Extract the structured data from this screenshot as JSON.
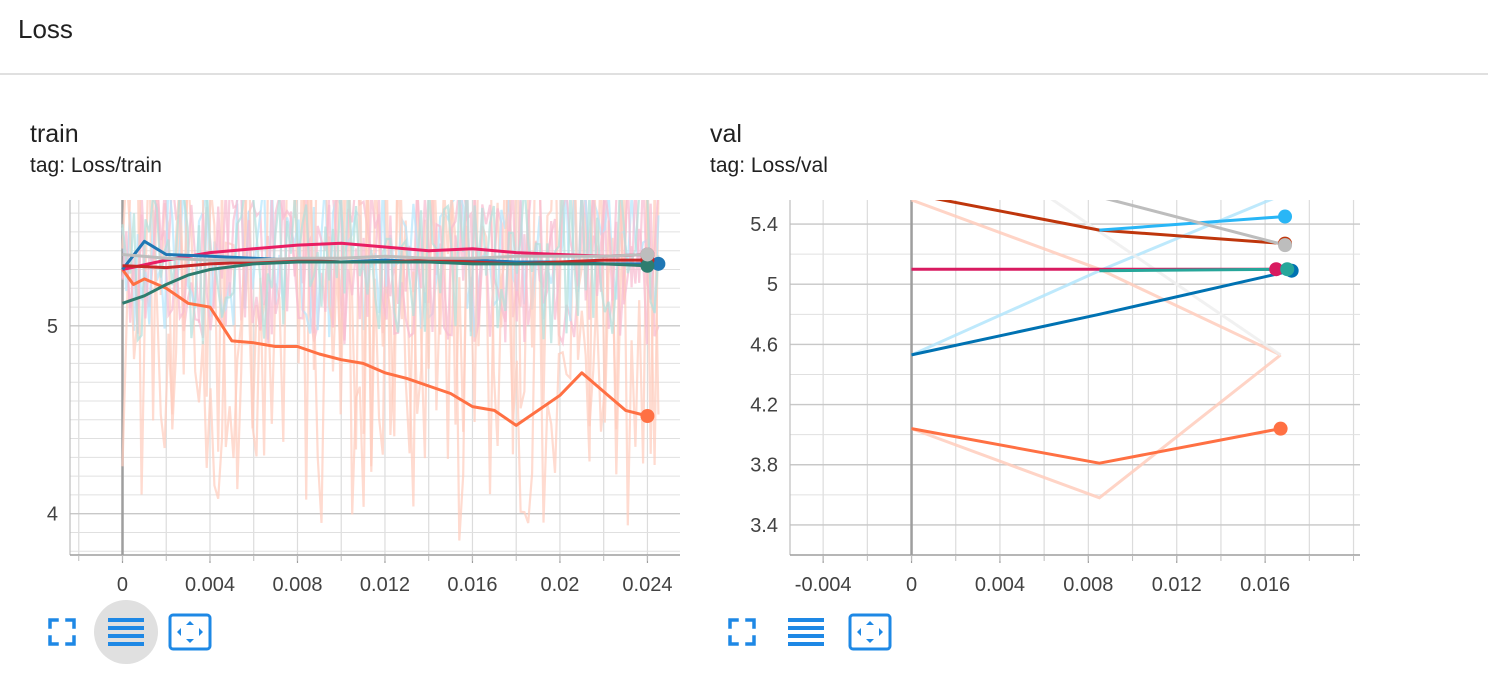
{
  "section": {
    "title": "Loss"
  },
  "cards": [
    {
      "title": "train",
      "tag": "tag: Loss/train"
    },
    {
      "title": "val",
      "tag": "tag: Loss/val"
    }
  ],
  "toolbar_icons": [
    "fullscreen-icon",
    "data-table-icon",
    "fit-domain-icon"
  ],
  "chart_data": [
    {
      "type": "line",
      "title": "train",
      "subtitle": "tag: Loss/train",
      "xlim": [
        -0.0024,
        0.0259
      ],
      "ylim": [
        3.78,
        5.67
      ],
      "xticks": [
        0,
        0.004,
        0.008,
        0.012,
        0.016,
        0.02,
        0.024
      ],
      "xtick_labels": [
        "0",
        "0.004",
        "0.008",
        "0.012",
        "0.016",
        "0.02",
        "0.024"
      ],
      "yticks": [
        4,
        5
      ],
      "ytick_labels": [
        "4",
        "5"
      ],
      "grid": true,
      "series": [
        {
          "color": "#ff7043",
          "x": [
            0,
            0.0005,
            0.001,
            0.002,
            0.003,
            0.004,
            0.005,
            0.006,
            0.007,
            0.008,
            0.009,
            0.01,
            0.011,
            0.012,
            0.013,
            0.014,
            0.015,
            0.016,
            0.017,
            0.018,
            0.019,
            0.02,
            0.021,
            0.022,
            0.023,
            0.024
          ],
          "y": [
            5.3,
            5.22,
            5.25,
            5.2,
            5.12,
            5.1,
            4.92,
            4.91,
            4.89,
            4.89,
            4.85,
            4.82,
            4.8,
            4.75,
            4.72,
            4.68,
            4.64,
            4.57,
            4.55,
            4.47,
            4.55,
            4.63,
            4.75,
            4.65,
            4.55,
            4.52
          ]
        },
        {
          "color": "#e91e63",
          "x": [
            0,
            0.002,
            0.004,
            0.006,
            0.008,
            0.01,
            0.012,
            0.014,
            0.016,
            0.018,
            0.02,
            0.022,
            0.024
          ],
          "y": [
            5.3,
            5.35,
            5.39,
            5.41,
            5.43,
            5.44,
            5.42,
            5.4,
            5.41,
            5.39,
            5.38,
            5.37,
            5.38
          ]
        },
        {
          "color": "#1f77b4",
          "x": [
            0,
            0.001,
            0.002,
            0.004,
            0.006,
            0.008,
            0.01,
            0.012,
            0.014,
            0.016,
            0.018,
            0.02,
            0.022,
            0.0245
          ],
          "y": [
            5.3,
            5.45,
            5.38,
            5.37,
            5.36,
            5.35,
            5.34,
            5.35,
            5.34,
            5.35,
            5.34,
            5.34,
            5.33,
            5.33
          ]
        },
        {
          "color": "#c62828",
          "x": [
            0,
            0.002,
            0.004,
            0.006,
            0.008,
            0.01,
            0.012,
            0.014,
            0.016,
            0.018,
            0.02,
            0.022,
            0.024
          ],
          "y": [
            5.32,
            5.31,
            5.33,
            5.34,
            5.35,
            5.34,
            5.34,
            5.35,
            5.34,
            5.33,
            5.34,
            5.35,
            5.35
          ]
        },
        {
          "color": "#2e7d6f",
          "x": [
            0,
            0.001,
            0.002,
            0.003,
            0.004,
            0.006,
            0.008,
            0.01,
            0.012,
            0.014,
            0.016,
            0.018,
            0.02,
            0.022,
            0.024
          ],
          "y": [
            5.12,
            5.16,
            5.22,
            5.27,
            5.3,
            5.33,
            5.34,
            5.34,
            5.34,
            5.34,
            5.33,
            5.33,
            5.33,
            5.33,
            5.32
          ]
        },
        {
          "color": "#bdbdbd",
          "x": [
            0,
            0.002,
            0.004,
            0.006,
            0.008,
            0.01,
            0.012,
            0.014,
            0.016,
            0.018,
            0.02,
            0.022,
            0.024
          ],
          "y": [
            5.38,
            5.36,
            5.35,
            5.35,
            5.36,
            5.36,
            5.37,
            5.36,
            5.36,
            5.37,
            5.37,
            5.37,
            5.38
          ]
        }
      ]
    },
    {
      "type": "line",
      "title": "val",
      "subtitle": "tag: Loss/val",
      "xlim": [
        -0.0055,
        0.0207
      ],
      "ylim": [
        3.2,
        5.56
      ],
      "xticks": [
        -0.004,
        0,
        0.004,
        0.008,
        0.012,
        0.016
      ],
      "xtick_labels": [
        "-0.004",
        "0",
        "0.004",
        "0.008",
        "0.012",
        "0.016"
      ],
      "yticks": [
        3.4,
        3.8,
        4.2,
        4.6,
        5,
        5.4
      ],
      "ytick_labels": [
        "3.4",
        "3.8",
        "4.2",
        "4.6",
        "5",
        "5.4"
      ],
      "grid": true,
      "series": [
        {
          "color": "#ff7043",
          "x": [
            0,
            0.0085,
            0.0167
          ],
          "y": [
            4.04,
            3.81,
            4.04
          ]
        },
        {
          "color": "#0072b2",
          "x": [
            0,
            0.0085,
            0.0172
          ],
          "y": [
            4.53,
            4.8,
            5.09
          ]
        },
        {
          "color": "#bf360c",
          "x": [
            0,
            0.0085,
            0.0169
          ],
          "y": [
            5.6,
            5.36,
            5.27
          ]
        },
        {
          "color": "#29b6f6",
          "x": [
            0.0085,
            0.0169
          ],
          "y": [
            5.36,
            5.45
          ]
        },
        {
          "color": "#d81b60",
          "x": [
            0,
            0.0165
          ],
          "y": [
            5.1,
            5.1
          ]
        },
        {
          "color": "#bdbdbd",
          "x": [
            0.008,
            0.0169
          ],
          "y": [
            5.6,
            5.26
          ]
        },
        {
          "color": "#26a69a",
          "x": [
            0.0085,
            0.017
          ],
          "y": [
            5.09,
            5.1
          ]
        }
      ]
    }
  ]
}
